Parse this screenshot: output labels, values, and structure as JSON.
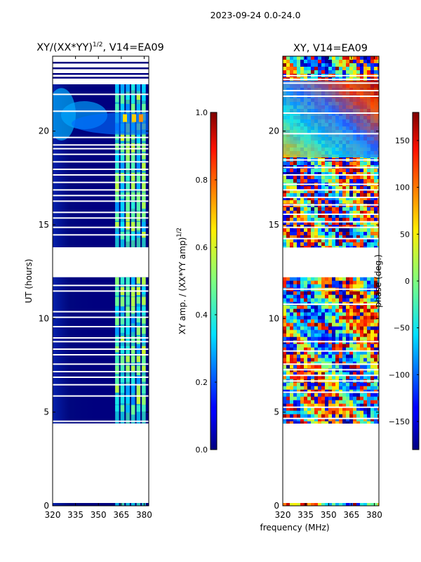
{
  "suptitle": "2023-09-24 0.0-24.0",
  "chart_data": [
    {
      "type": "heatmap",
      "title": "XY/(XX*YY)",
      "title_sup": "1/2",
      "title_suffix": ", V14=EA09",
      "xlabel": "",
      "ylabel": "UT (hours)",
      "xlim": [
        320,
        383
      ],
      "ylim": [
        0,
        24
      ],
      "xticks": [
        320,
        335,
        350,
        365,
        380
      ],
      "yticks": [
        0,
        5,
        10,
        15,
        20
      ],
      "colorbar": {
        "label": "XY amp. / (XX*YY amp)",
        "label_sup": "1/2",
        "range": [
          0.0,
          1.0
        ],
        "ticks": [
          0.0,
          0.2,
          0.4,
          0.6,
          0.8,
          1.0
        ],
        "tick_labels": [
          "0.0",
          "0.2",
          "0.4",
          "0.6",
          "0.8",
          "1.0"
        ]
      },
      "data_time_ranges": [
        [
          0,
          0.15
        ],
        [
          4.4,
          12.2
        ],
        [
          13.8,
          22.5
        ]
      ],
      "rfi_channel_bands": [
        [
          361,
          363.5
        ],
        [
          364.5,
          367
        ],
        [
          368,
          370.5
        ],
        [
          371.5,
          374
        ],
        [
          375,
          377.5
        ],
        [
          378.5,
          381
        ]
      ]
    },
    {
      "type": "heatmap",
      "title": "XY, V14=EA09",
      "xlabel": "frequency (MHz)",
      "ylabel": "",
      "xlim": [
        320,
        383
      ],
      "ylim": [
        0,
        24
      ],
      "xticks": [
        320,
        335,
        350,
        365,
        380
      ],
      "yticks": [
        0,
        5,
        10,
        15,
        20
      ],
      "colorbar": {
        "label": "phase (deg.)",
        "range": [
          -180,
          180
        ],
        "ticks": [
          -150,
          -100,
          -50,
          0,
          50,
          100,
          150
        ],
        "tick_labels": [
          "−150",
          "−100",
          "−50",
          "0",
          "50",
          "100",
          "150"
        ]
      },
      "data_time_ranges": [
        [
          0,
          0.15
        ],
        [
          4.4,
          12.2
        ],
        [
          13.8,
          24
        ]
      ]
    }
  ],
  "colors": {
    "jet_low": "#00007f",
    "jet_mid": "#7fff7f",
    "jet_high": "#7f0000"
  }
}
